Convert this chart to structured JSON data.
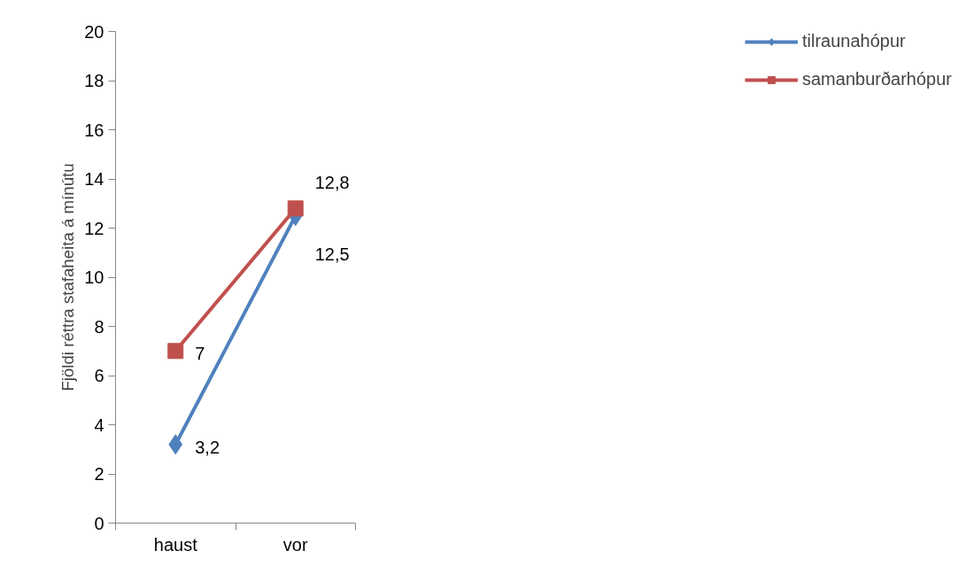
{
  "chart_data": {
    "type": "line",
    "ylabel": "Fjöldi réttra stafaheita á mínútu",
    "categories": [
      "haust",
      "vor"
    ],
    "series": [
      {
        "name": "tilraunahópur",
        "color": "#4f81bd",
        "marker": "diamond",
        "values": [
          3.2,
          12.5
        ],
        "value_labels": [
          "3,2",
          "12,5"
        ]
      },
      {
        "name": "samanburðarhópur",
        "color": "#c0504d",
        "marker": "square",
        "values": [
          7,
          12.8
        ],
        "value_labels": [
          "7",
          "12,8"
        ]
      }
    ],
    "ylim": [
      0,
      20
    ],
    "yticks": [
      0,
      2,
      4,
      6,
      8,
      10,
      12,
      14,
      16,
      18,
      20
    ],
    "grid": false,
    "legend": "right"
  }
}
